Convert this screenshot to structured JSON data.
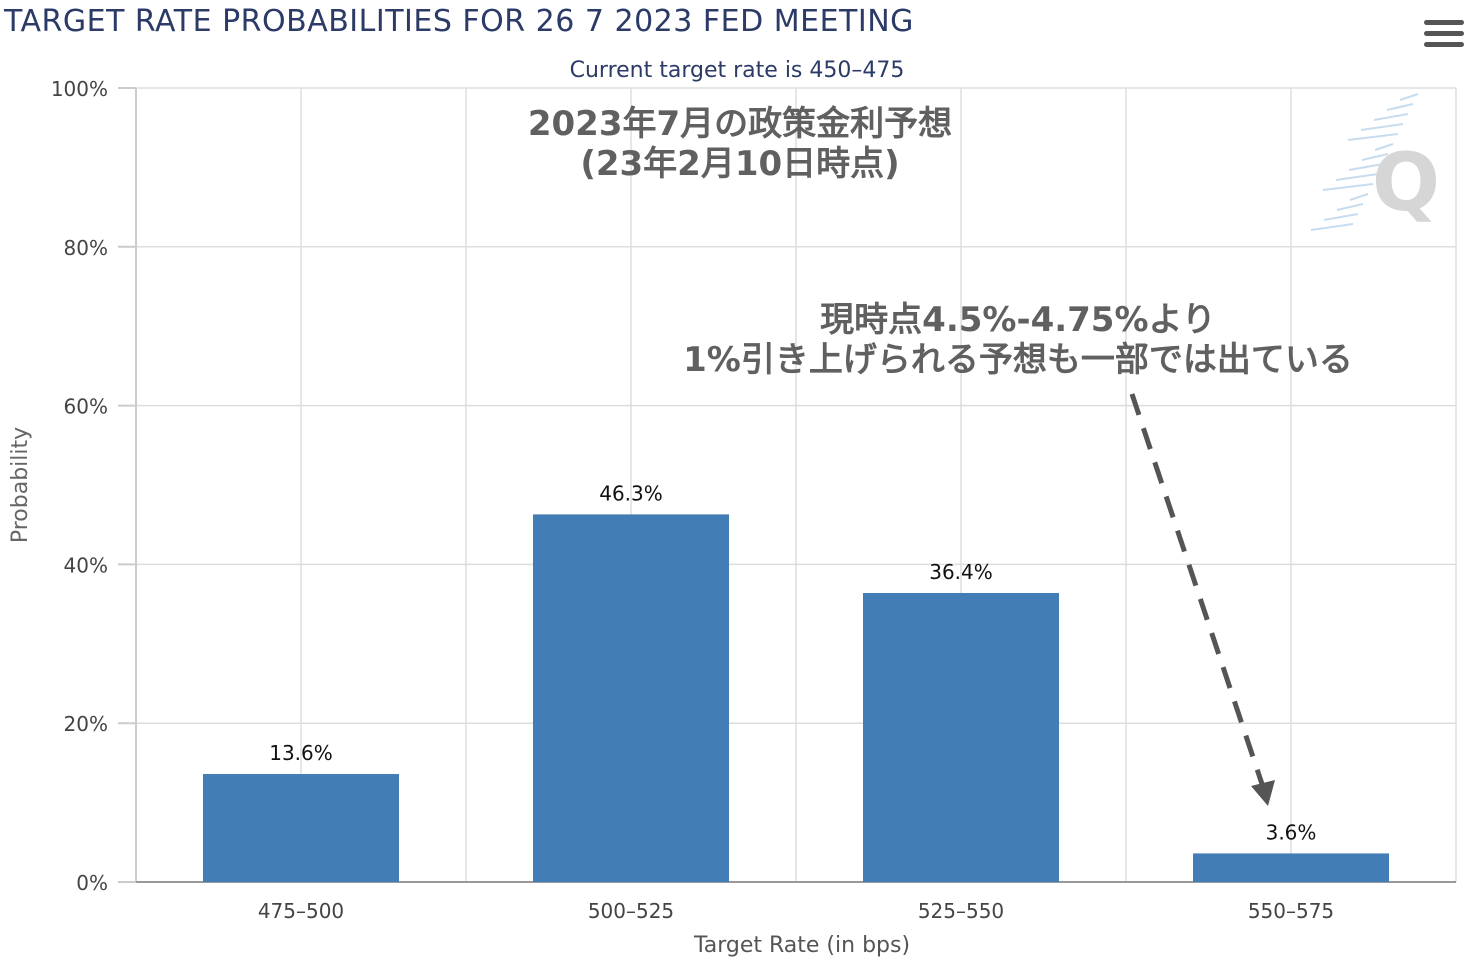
{
  "header": {
    "title": "TARGET RATE PROBABILITIES FOR 26 7 2023 FED MEETING",
    "subtitle": "Current target rate is 450–475",
    "menu_icon": "hamburger-menu-icon"
  },
  "annotations": {
    "title_line1": "2023年7月の政策金利予想",
    "title_line2": "(23年2月10日時点)",
    "note_line1": "現時点4.5%-4.75%より",
    "note_line2": "1%引き上げられる予想も一部では出ている",
    "watermark": "Q"
  },
  "chart_data": {
    "type": "bar",
    "categories": [
      "475–500",
      "500–525",
      "525–550",
      "550–575"
    ],
    "values": [
      13.6,
      46.3,
      36.4,
      3.6
    ],
    "data_labels": [
      "13.6%",
      "46.3%",
      "36.4%",
      "3.6%"
    ],
    "xlabel": "Target Rate (in bps)",
    "ylabel": "Probability",
    "ylim": [
      0,
      100
    ],
    "yticks": [
      0,
      20,
      40,
      60,
      80,
      100
    ],
    "ytick_labels": [
      "0%",
      "20%",
      "40%",
      "60%",
      "80%",
      "100%"
    ],
    "bar_color": "#427eb5",
    "grid": true
  }
}
